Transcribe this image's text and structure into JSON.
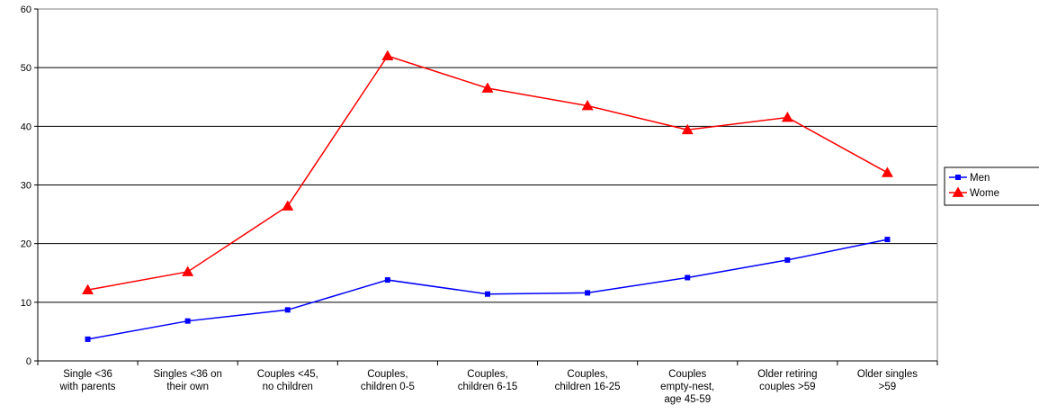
{
  "chart_data": {
    "type": "line",
    "categories": [
      [
        "Single <36",
        "with parents"
      ],
      [
        "Singles <36 on",
        "their own"
      ],
      [
        "Couples <45,",
        "no children"
      ],
      [
        "Couples,",
        "children 0-5"
      ],
      [
        "Couples,",
        "children 6-15"
      ],
      [
        "Couples,",
        "children 16-25"
      ],
      [
        "Couples",
        "empty-nest,",
        "age 45-59"
      ],
      [
        "Older retiring",
        "couples >59"
      ],
      [
        "Older singles",
        ">59"
      ]
    ],
    "series": [
      {
        "name": "Men",
        "color": "#0000ff",
        "marker": "square",
        "values": [
          3.7,
          6.8,
          8.7,
          13.8,
          11.4,
          11.6,
          14.2,
          17.2,
          20.7
        ]
      },
      {
        "name": "Wome",
        "color": "#ff0000",
        "marker": "triangle",
        "values": [
          12.1,
          15.2,
          26.4,
          52.0,
          46.5,
          43.5,
          39.4,
          41.5,
          32.1
        ]
      }
    ],
    "y_ticks": [
      "0",
      "10",
      "20",
      "30",
      "40",
      "50",
      "60"
    ],
    "ylim": [
      0,
      60
    ],
    "grid": true,
    "legend_position": "right"
  }
}
